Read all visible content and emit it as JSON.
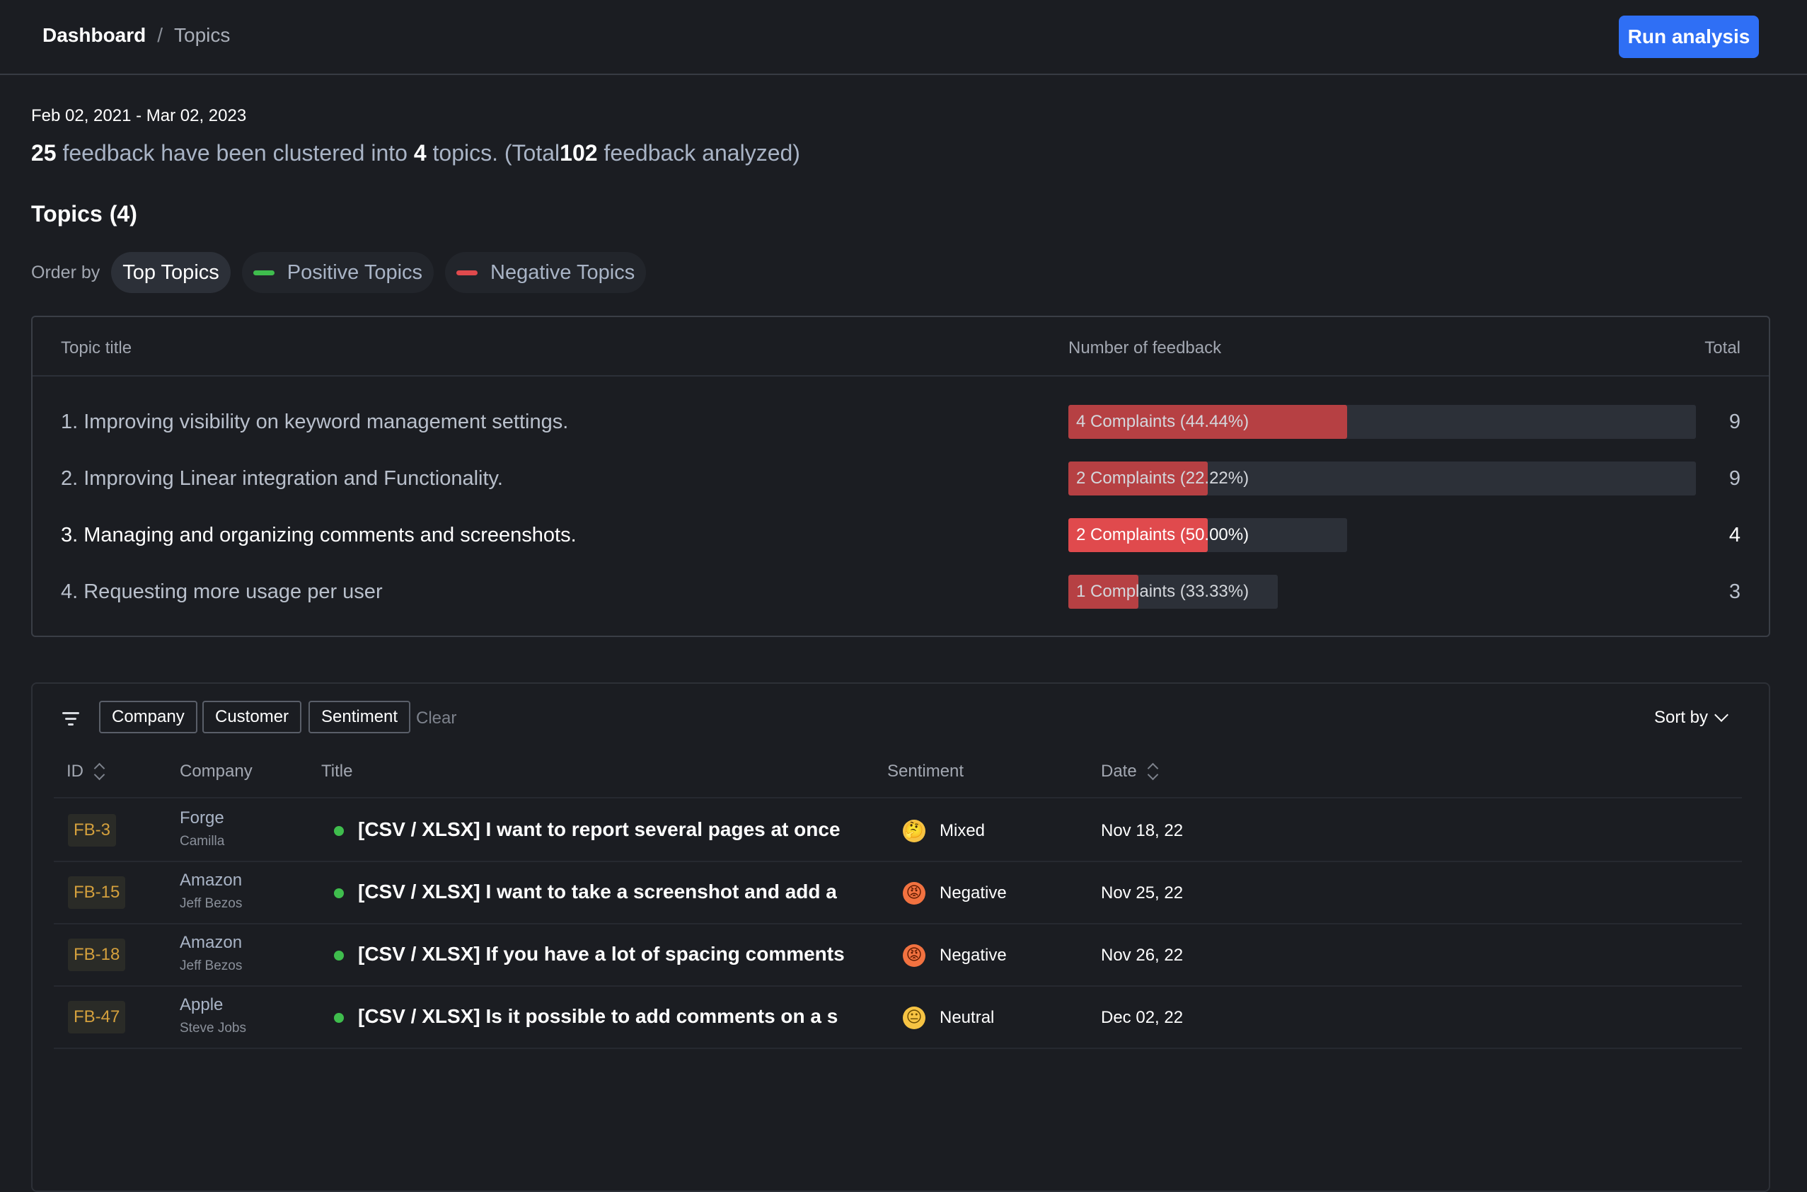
{
  "breadcrumb": {
    "root": "Dashboard",
    "separator": "/",
    "current": "Topics"
  },
  "header": {
    "run_button": "Run analysis"
  },
  "summary": {
    "date_range": "Feb 02, 2021 - Mar 02, 2023",
    "clustered_count": "25",
    "text_a": "feedback have been clustered into",
    "topic_count": "4",
    "text_b": "topics. (Total",
    "total_count": "102",
    "text_c": "feedback analyzed)"
  },
  "topics_heading": {
    "label": "Topics",
    "count": "(4)"
  },
  "order_by": {
    "label": "Order by",
    "options": [
      {
        "label": "Top Topics",
        "active": true,
        "dash_color": null
      },
      {
        "label": "Positive Topics",
        "active": false,
        "dash_color": "#3fbd4d"
      },
      {
        "label": "Negative Topics",
        "active": false,
        "dash_color": "#e04a4d"
      }
    ]
  },
  "topic_table": {
    "headers": {
      "title": "Topic title",
      "feedback": "Number of feedback",
      "total": "Total"
    },
    "rows": [
      {
        "title": "1. Improving visibility on keyword management settings.",
        "bar_label": "4 Complaints (44.44%)",
        "complaints": 4,
        "total": "9",
        "highlight": false
      },
      {
        "title": "2. Improving Linear integration and Functionality.",
        "bar_label": "2 Complaints (22.22%)",
        "complaints": 2,
        "total": "9",
        "highlight": false
      },
      {
        "title": "3. Managing and organizing comments and screenshots.",
        "bar_label": "2 Complaints (50.00%)",
        "complaints": 2,
        "total": "4",
        "highlight": true
      },
      {
        "title": "4. Requesting more usage per user",
        "bar_label": "1 Complaints (33.33%)",
        "complaints": 1,
        "total": "3",
        "highlight": false
      }
    ]
  },
  "filters": {
    "chips": [
      "Company",
      "Customer",
      "Sentiment"
    ],
    "clear": "Clear",
    "sort_by": "Sort by"
  },
  "feedback_table": {
    "headers": {
      "id": "ID",
      "company": "Company",
      "title": "Title",
      "sentiment": "Sentiment",
      "date": "Date"
    },
    "rows": [
      {
        "id": "FB-3",
        "company": "Forge",
        "customer": "Camilla",
        "title": "[CSV / XLSX] I want to report several pages at once",
        "sentiment": "Mixed",
        "emoji": "🤔",
        "date": "Nov 18, 22"
      },
      {
        "id": "FB-15",
        "company": "Amazon",
        "customer": "Jeff Bezos",
        "title": "[CSV / XLSX] I want to take a screenshot and add a",
        "sentiment": "Negative",
        "emoji": "😡",
        "date": "Nov 25, 22"
      },
      {
        "id": "FB-18",
        "company": "Amazon",
        "customer": "Jeff Bezos",
        "title": "[CSV / XLSX] If you have a lot of spacing comments",
        "sentiment": "Negative",
        "emoji": "😡",
        "date": "Nov 26, 22"
      },
      {
        "id": "FB-47",
        "company": "Apple",
        "customer": "Steve Jobs",
        "title": "[CSV / XLSX] Is it possible to add comments on a s",
        "sentiment": "Neutral",
        "emoji": "😐",
        "date": "Dec 02, 22"
      }
    ]
  },
  "colors": {
    "accent": "#2f6ff5",
    "complaint_bar": "#b64043",
    "complaint_bar_active": "#e04a4d",
    "id_badge_text": "#d4a03d",
    "status_dot": "#3fbd4d"
  }
}
